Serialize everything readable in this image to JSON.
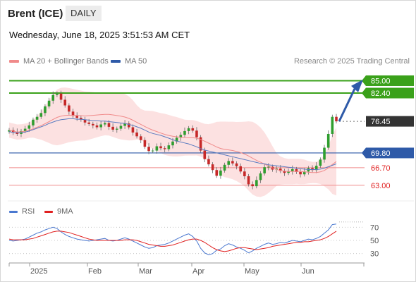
{
  "header": {
    "title": "Brent (ICE)",
    "period": "DAILY"
  },
  "timestamp": "Wednesday, June 18, 2025 3:51:53 AM CET",
  "legend": {
    "ma20": {
      "label": "MA 20 + Bollinger Bands",
      "color": "#f08a8a"
    },
    "ma50": {
      "label": "MA 50",
      "color": "#2e5aa8"
    }
  },
  "copyright": "Research © 2025 Trading Central",
  "rsi_legend": {
    "rsi": {
      "label": "RSI",
      "color": "#4a78d0"
    },
    "ma": {
      "label": "9MA",
      "color": "#e02020"
    }
  },
  "chart_data": [
    {
      "type": "line",
      "name": "price",
      "x_labels": [
        "2025",
        "Feb",
        "Mar",
        "Apr",
        "May",
        "Jun"
      ],
      "levels": [
        {
          "value": 85.0,
          "label": "85.00",
          "kind": "resistance"
        },
        {
          "value": 82.4,
          "label": "82.40",
          "kind": "resistance"
        },
        {
          "value": 76.45,
          "label": "76.45",
          "kind": "last"
        },
        {
          "value": 69.8,
          "label": "69.80",
          "kind": "pivot"
        },
        {
          "value": 66.7,
          "label": "66.70",
          "kind": "support"
        },
        {
          "value": 63.0,
          "label": "63.00",
          "kind": "support"
        }
      ],
      "close_series": [
        74.6,
        74.2,
        73.8,
        74.4,
        74.9,
        75.6,
        76.8,
        77.4,
        78.2,
        79.6,
        80.8,
        82.0,
        82.3,
        81.0,
        79.8,
        78.5,
        77.6,
        77.2,
        76.8,
        76.2,
        75.9,
        75.6,
        75.2,
        75.8,
        76.1,
        75.3,
        74.7,
        74.9,
        75.5,
        76.0,
        75.2,
        74.1,
        73.3,
        72.5,
        71.1,
        70.2,
        70.3,
        71.2,
        70.8,
        70.6,
        71.4,
        72.2,
        73.0,
        73.6,
        74.4,
        75.0,
        74.5,
        73.1,
        70.3,
        68.5,
        67.4,
        66.2,
        65.0,
        66.1,
        67.3,
        68.1,
        67.6,
        67.0,
        65.9,
        64.9,
        63.2,
        62.8,
        64.1,
        65.5,
        66.8,
        66.9,
        66.3,
        66.5,
        66.0,
        65.6,
        65.9,
        66.4,
        65.8,
        65.3,
        65.9,
        66.6,
        66.2,
        67.1,
        68.4,
        70.9,
        73.8,
        77.4,
        76.45
      ],
      "ma50_series": [
        74.3,
        74.1,
        74.0,
        74.1,
        74.2,
        74.4,
        74.7,
        75.0,
        75.3,
        75.6,
        76.0,
        76.3,
        76.6,
        76.8,
        76.9,
        77.0,
        77.0,
        76.9,
        76.9,
        76.8,
        76.7,
        76.6,
        76.6,
        76.5,
        76.5,
        76.4,
        76.3,
        76.2,
        76.1,
        76.0,
        75.8,
        75.6,
        75.3,
        75.0,
        74.6,
        74.2,
        73.9,
        73.7,
        73.5,
        73.2,
        72.9,
        72.6,
        72.3,
        72.1,
        71.9,
        71.7,
        71.4,
        71.1,
        70.7,
        70.4,
        70.2,
        70.0,
        69.8,
        69.6,
        69.4,
        69.2,
        69.0,
        68.8,
        68.6,
        68.4,
        68.2,
        68.0,
        67.8,
        67.6,
        67.5,
        67.3,
        67.2,
        67.1,
        67.0,
        66.9,
        66.8,
        66.7,
        66.6,
        66.5,
        66.4,
        66.3,
        66.3,
        66.3,
        66.4,
        66.6,
        66.9,
        67.2,
        67.5
      ],
      "ylim": [
        60,
        87
      ]
    },
    {
      "type": "line",
      "name": "rsi",
      "y_ticks": [
        "70",
        "50",
        "30"
      ],
      "ylim": [
        20,
        80
      ],
      "rsi_series": [
        50,
        49,
        50,
        51,
        52,
        55,
        58,
        61,
        63,
        66,
        68,
        70,
        68,
        63,
        59,
        56,
        54,
        52,
        51,
        50,
        49,
        50,
        51,
        52,
        53,
        50,
        49,
        50,
        52,
        54,
        52,
        49,
        46,
        43,
        40,
        38,
        39,
        42,
        43,
        44,
        46,
        49,
        52,
        55,
        58,
        60,
        56,
        49,
        38,
        31,
        28,
        30,
        35,
        37,
        42,
        45,
        43,
        40,
        38,
        35,
        31,
        34,
        38,
        41,
        44,
        46,
        44,
        45,
        47,
        46,
        48,
        50,
        49,
        48,
        50,
        52,
        51,
        53,
        56,
        61,
        66,
        74,
        75
      ],
      "ma_series": [
        52,
        51,
        51,
        51,
        51,
        52,
        53,
        55,
        57,
        59,
        61,
        63,
        64,
        64,
        63,
        62,
        60,
        58,
        56,
        54,
        52,
        51,
        50,
        50,
        50,
        50,
        50,
        50,
        50,
        51,
        51,
        51,
        50,
        48,
        46,
        44,
        43,
        42,
        41,
        41,
        42,
        43,
        45,
        47,
        49,
        51,
        52,
        52,
        50,
        47,
        43,
        39,
        36,
        34,
        33,
        34,
        36,
        38,
        39,
        39,
        38,
        37,
        36,
        37,
        38,
        39,
        41,
        42,
        43,
        44,
        45,
        46,
        47,
        47,
        48,
        48,
        49,
        50,
        51,
        53,
        56,
        60,
        64
      ]
    }
  ]
}
